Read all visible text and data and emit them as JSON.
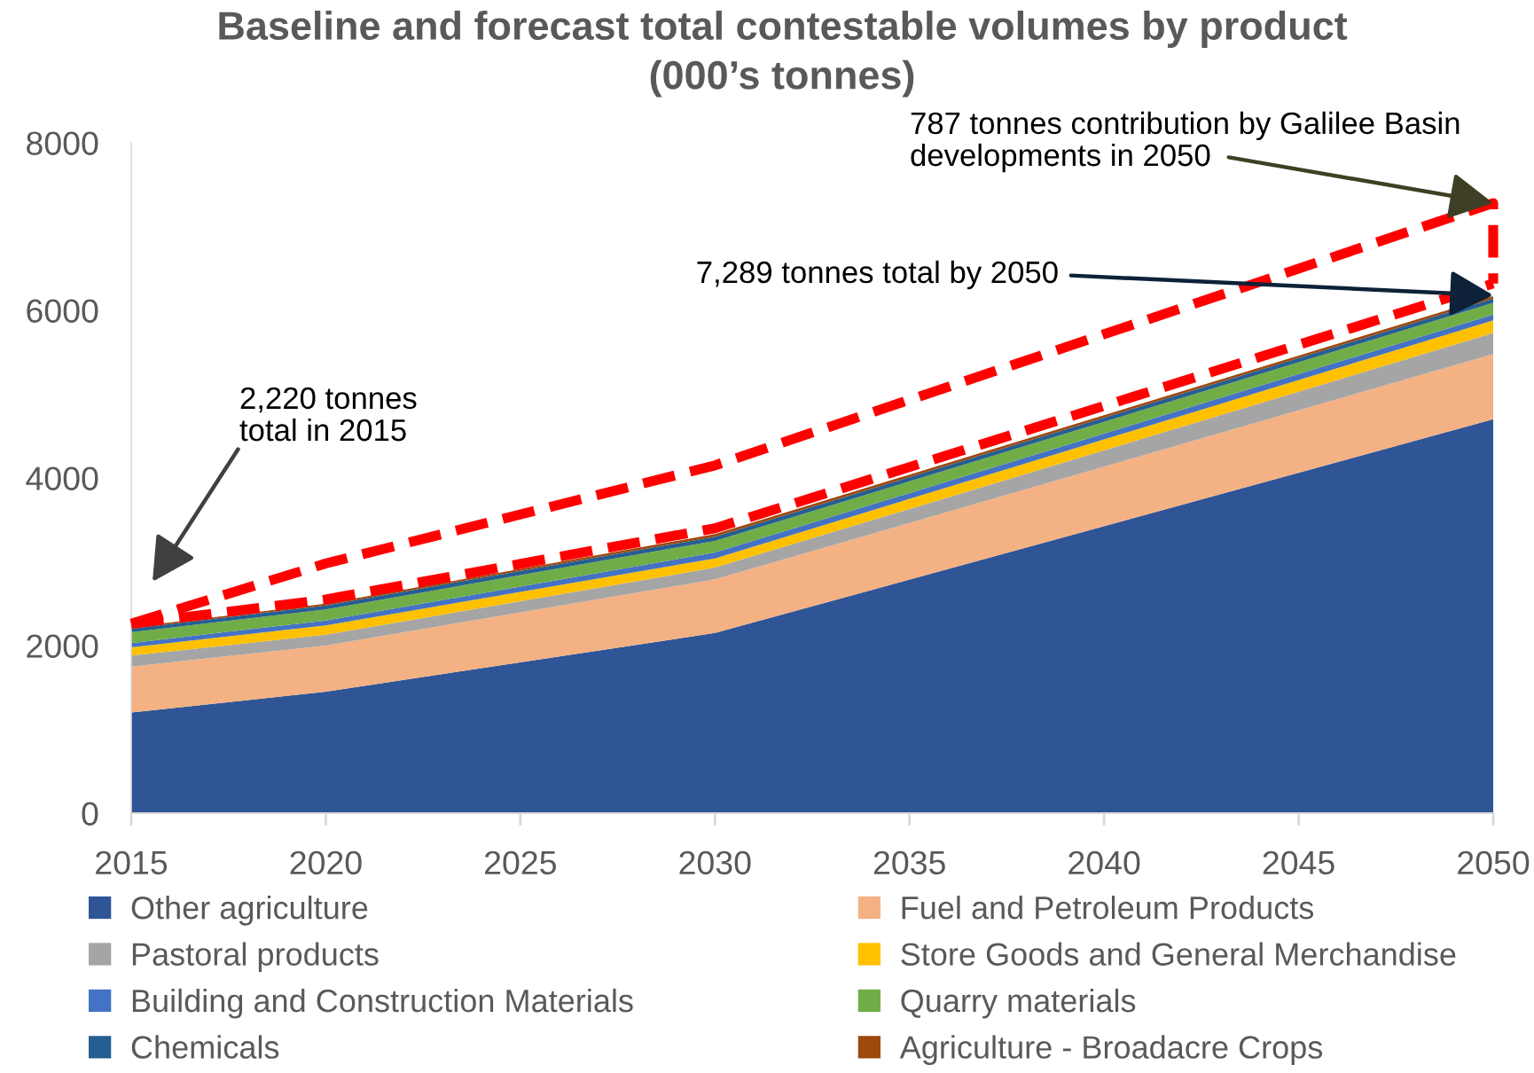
{
  "chart_data": {
    "type": "area",
    "title": "Baseline and forecast total contestable volumes by product\n(000’s tonnes)",
    "x": [
      2015,
      2020,
      2030,
      2050
    ],
    "stacked": true,
    "series": [
      {
        "name": "Other agriculture",
        "color": "#2f5597",
        "values": [
          1200,
          1450,
          2150,
          4700
        ]
      },
      {
        "name": "Fuel and Petroleum Products",
        "color": "#f4b183",
        "values": [
          550,
          550,
          640,
          780
        ]
      },
      {
        "name": "Pastoral products",
        "color": "#a5a5a5",
        "values": [
          130,
          130,
          140,
          250
        ]
      },
      {
        "name": "Store Goods and General Merchandise",
        "color": "#ffc000",
        "values": [
          100,
          110,
          110,
          150
        ]
      },
      {
        "name": "Building and Construction Materials",
        "color": "#4472c4",
        "values": [
          50,
          60,
          70,
          70
        ]
      },
      {
        "name": "Quarry materials",
        "color": "#70ad47",
        "values": [
          130,
          130,
          140,
          140
        ]
      },
      {
        "name": "Chemicals",
        "color": "#255e91",
        "values": [
          40,
          50,
          50,
          50
        ]
      },
      {
        "name": "Agriculture - Broadacre Crops",
        "color": "#9e480e",
        "values": [
          20,
          20,
          30,
          30
        ]
      },
      {
        "type": "line",
        "color": "#ff0000",
        "line_style": "dashed",
        "x": [
          2015,
          2020,
          2030,
          2050,
          2050
        ],
        "values": [
          2260,
          2980,
          4150,
          7280,
          6320
        ]
      },
      {
        "type": "line",
        "color": "#ff0000",
        "line_style": "dashed",
        "x": [
          2015,
          2020,
          2030,
          2050
        ],
        "values": [
          2260,
          2550,
          3400,
          6320
        ]
      }
    ],
    "xlim": [
      2015,
      2050
    ],
    "xticks": [
      2015,
      2020,
      2025,
      2030,
      2035,
      2040,
      2045,
      2050
    ],
    "ylim": [
      0,
      8000
    ],
    "yticks": [
      0,
      2000,
      4000,
      6000,
      8000
    ],
    "legend": "bottom",
    "annotations": [
      "2,220 tonnes\ntotal in 2015",
      {
        "text": "7,289 tonnes total by 2050",
        "x": 2050,
        "y": 6180
      },
      {
        "text": "787 tonnes contribution by Galilee Basin\ndevelopments in 2050",
        "x": 2050,
        "y": 7280
      }
    ]
  }
}
